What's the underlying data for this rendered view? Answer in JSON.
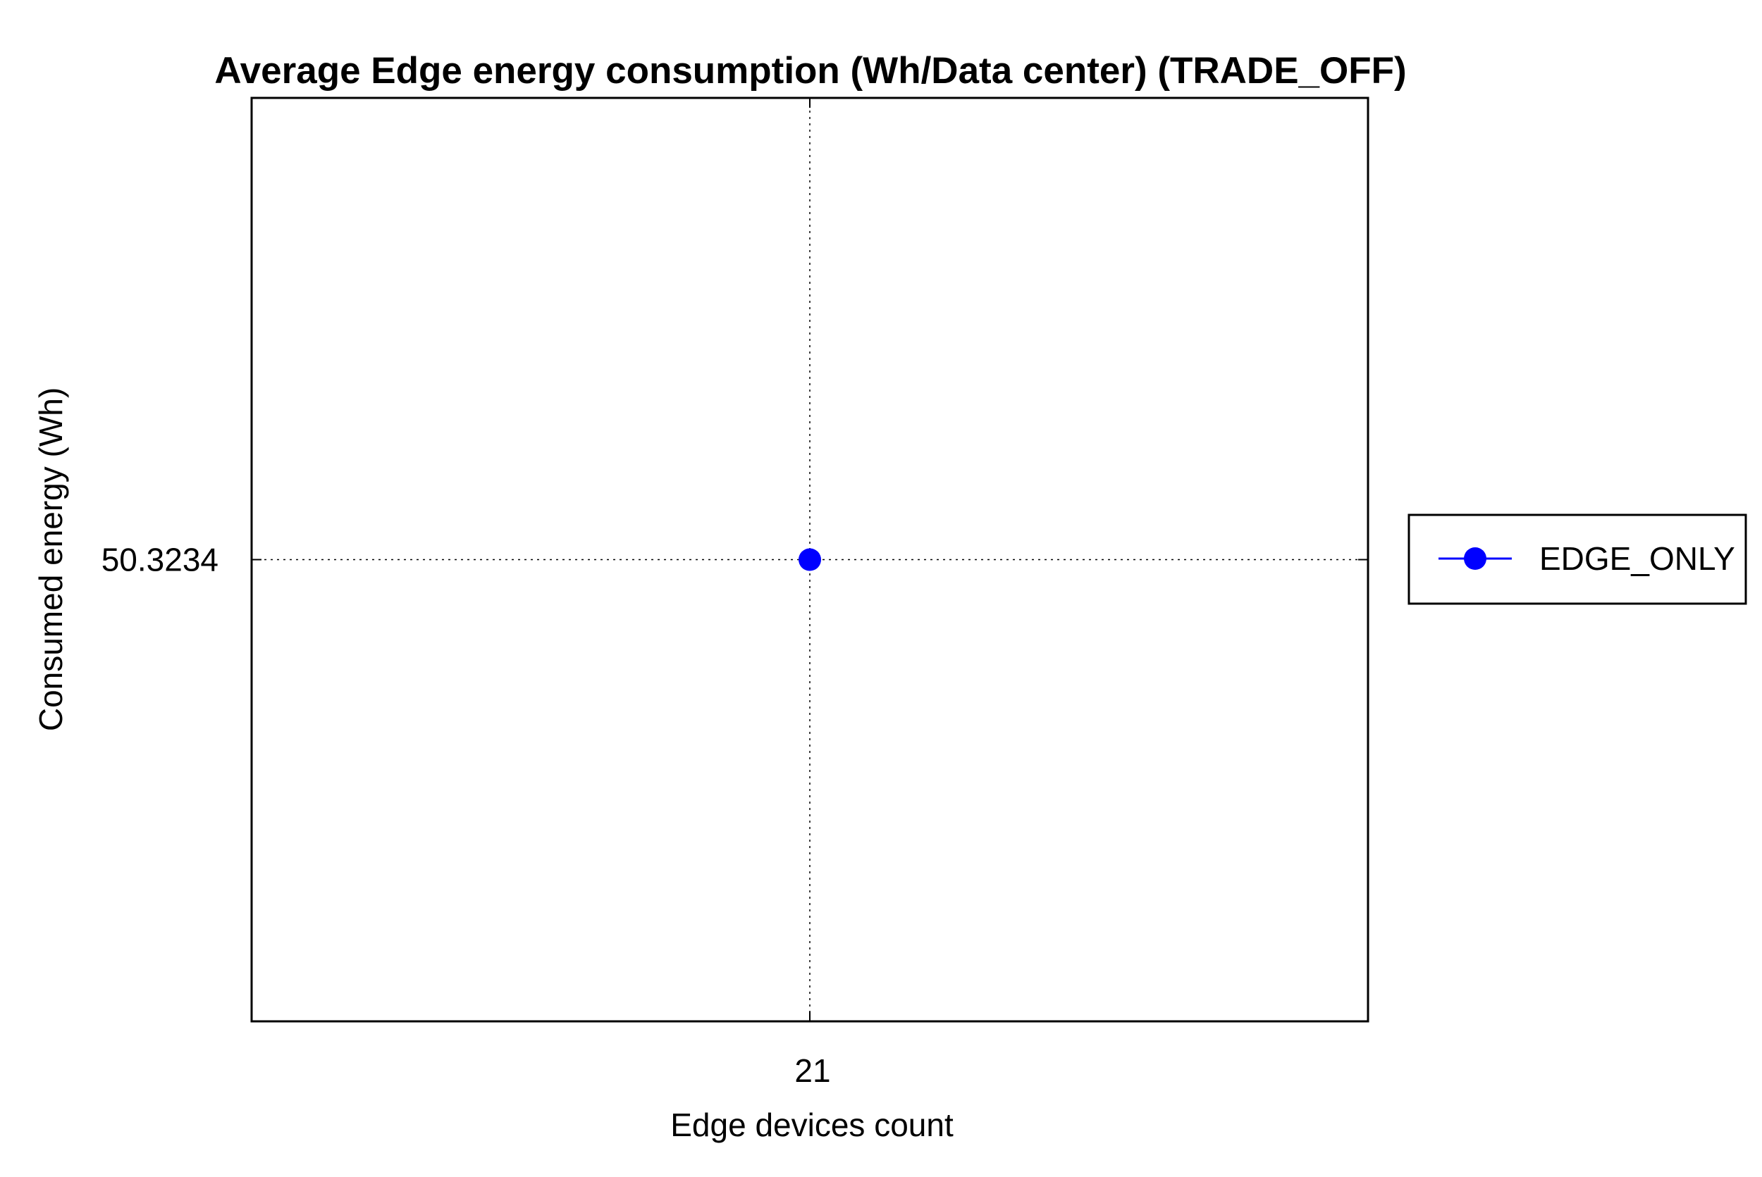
{
  "chart_data": {
    "type": "line",
    "title": "Average Edge energy consumption (Wh/Data center) (TRADE_OFF)",
    "xlabel": "Edge devices count",
    "ylabel": "Consumed energy (Wh)",
    "x_ticks": [
      "21"
    ],
    "y_ticks": [
      "50.3234"
    ],
    "grid": true,
    "legend_position": "right",
    "series": [
      {
        "name": "EDGE_ONLY",
        "color": "#0000ff",
        "marker": "circle",
        "x": [
          21
        ],
        "y": [
          50.3234
        ]
      }
    ]
  }
}
